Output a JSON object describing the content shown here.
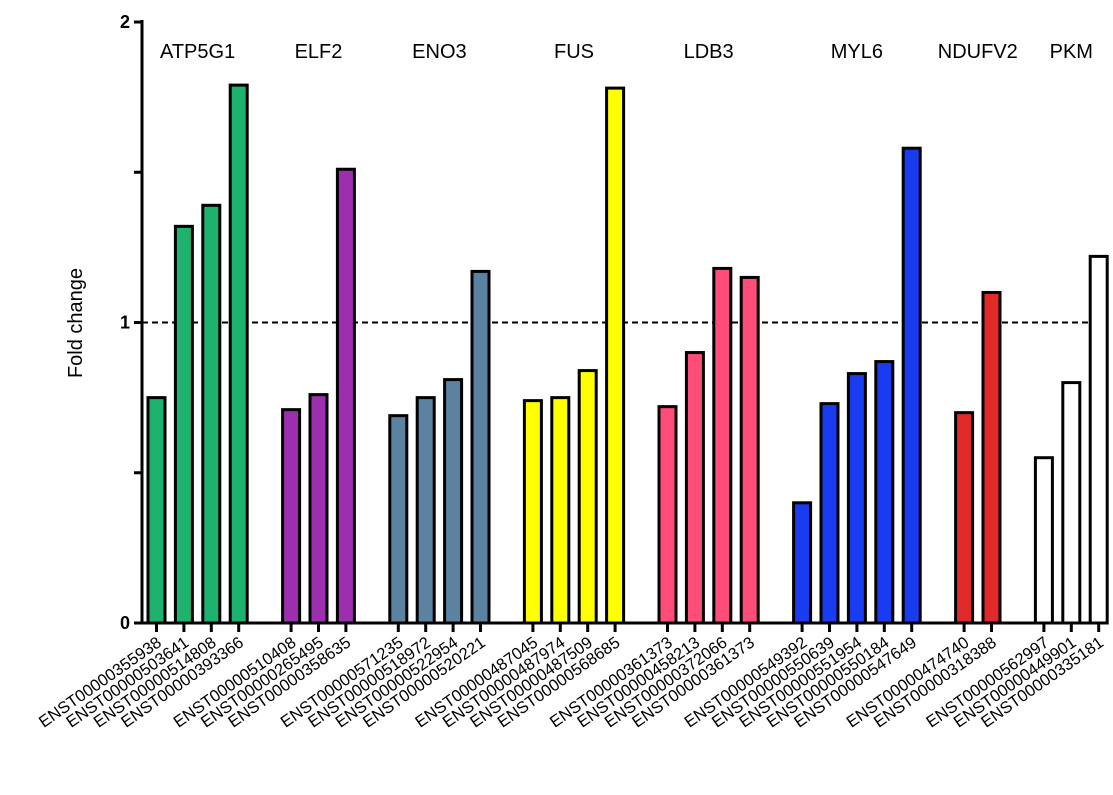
{
  "chart_data": {
    "type": "bar",
    "title": "",
    "xlabel": "",
    "ylabel": "Fold change",
    "ylim": [
      0,
      2
    ],
    "yticks": [
      {
        "value": 0,
        "label": "0"
      },
      {
        "value": 0.5,
        "label": ""
      },
      {
        "value": 1,
        "label": "1"
      },
      {
        "value": 1.5,
        "label": ""
      },
      {
        "value": 2,
        "label": "2"
      }
    ],
    "reference_line": {
      "value": 1,
      "style": "dashed"
    },
    "grid": false,
    "groups": [
      {
        "name": "ATP5G1",
        "color": "#1db36e",
        "categories": [
          "ENST00000355938",
          "ENST00000503641",
          "ENST00000514808",
          "ENST00000393366"
        ],
        "values": [
          0.75,
          1.32,
          1.39,
          1.79
        ]
      },
      {
        "name": "ELF2",
        "color": "#9b2fae",
        "categories": [
          "ENST00000510408",
          "ENST00000265495",
          "ENST00000358635"
        ],
        "values": [
          0.71,
          0.76,
          1.51
        ]
      },
      {
        "name": "ENO3",
        "color": "#5b82a0",
        "categories": [
          "ENST00000571235",
          "ENST00000518972",
          "ENST00000522954",
          "ENST00000520221"
        ],
        "values": [
          0.69,
          0.75,
          0.81,
          1.17
        ]
      },
      {
        "name": "FUS",
        "color": "#ffff00",
        "categories": [
          "ENST00000487045",
          "ENST00000487974",
          "ENST00000487509",
          "ENST00000568685"
        ],
        "values": [
          0.74,
          0.75,
          0.84,
          1.78
        ]
      },
      {
        "name": "LDB3",
        "color": "#ff4d7a",
        "categories": [
          "ENST00000361373",
          "ENST00000458213",
          "ENST00000372066",
          "ENST00000361373"
        ],
        "values": [
          0.72,
          0.9,
          1.18,
          1.15
        ]
      },
      {
        "name": "MYL6",
        "color": "#1a3cf0",
        "categories": [
          "ENST00000549392",
          "ENST00000550639",
          "ENST00000551954",
          "ENST00000550184",
          "ENST00000547649"
        ],
        "values": [
          0.4,
          0.73,
          0.83,
          0.87,
          1.58
        ]
      },
      {
        "name": "NDUFV2",
        "color": "#e02a2a",
        "categories": [
          "ENST00000474740",
          "ENST00000318388"
        ],
        "values": [
          0.7,
          1.1
        ]
      },
      {
        "name": "PKM",
        "color": "#ffffff",
        "categories": [
          "ENST00000562997",
          "ENST00000449901",
          "ENST00000335181"
        ],
        "values": [
          0.55,
          0.8,
          1.22
        ]
      }
    ]
  }
}
